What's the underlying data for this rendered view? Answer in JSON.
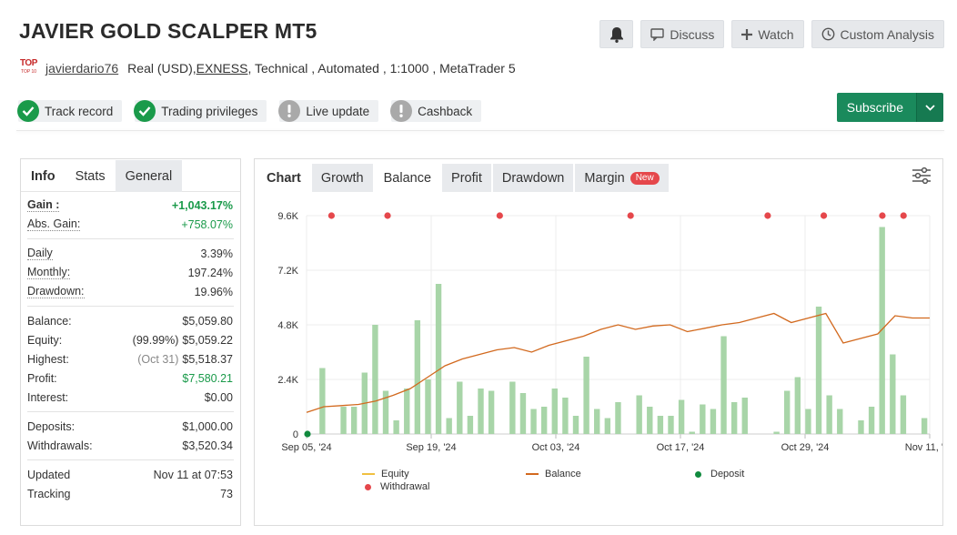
{
  "header": {
    "title": "JAVIER GOLD SCALPER MT5",
    "actions": {
      "discuss": "Discuss",
      "watch": "Watch",
      "custom_analysis": "Custom Analysis"
    }
  },
  "account": {
    "logo_top": "TOP",
    "logo_bottom": "TOP 10",
    "username": "javierdario76",
    "type_prefix": "Real (USD), ",
    "broker": "EXNESS",
    "details": " , Technical , Automated , 1:1000 , MetaTrader 5"
  },
  "badges": [
    {
      "label": "Track record",
      "status": "ok"
    },
    {
      "label": "Trading privileges",
      "status": "ok"
    },
    {
      "label": "Live update",
      "status": "warn"
    },
    {
      "label": "Cashback",
      "status": "warn"
    }
  ],
  "subscribe": {
    "label": "Subscribe"
  },
  "left_tabs": [
    "Info",
    "Stats",
    "General"
  ],
  "stats": {
    "gain": {
      "label": "Gain :",
      "value": "+1,043.17%"
    },
    "abs_gain": {
      "label": "Abs. Gain:",
      "value": "+758.07%"
    },
    "daily": {
      "label": "Daily",
      "value": "3.39%"
    },
    "monthly": {
      "label": "Monthly:",
      "value": "197.24%"
    },
    "drawdown": {
      "label": "Drawdown:",
      "value": "19.96%"
    },
    "balance": {
      "label": "Balance:",
      "value": "$5,059.80"
    },
    "equity": {
      "label": "Equity:",
      "note": "(99.99%)",
      "value": "$5,059.22"
    },
    "highest": {
      "label": "Highest:",
      "note": "(Oct 31)",
      "value": "$5,518.37"
    },
    "profit": {
      "label": "Profit:",
      "value": "$7,580.21"
    },
    "interest": {
      "label": "Interest:",
      "value": "$0.00"
    },
    "deposits": {
      "label": "Deposits:",
      "value": "$1,000.00"
    },
    "withdrawals": {
      "label": "Withdrawals:",
      "value": "$3,520.34"
    },
    "updated": {
      "label": "Updated",
      "value": "Nov 11 at 07:53"
    },
    "tracking": {
      "label": "Tracking",
      "value": "73"
    }
  },
  "chart_tabs": {
    "label": "Chart",
    "items": [
      "Growth",
      "Balance",
      "Profit",
      "Drawdown",
      "Margin"
    ],
    "active": "Balance",
    "new_badge": "New"
  },
  "colors": {
    "bar": "#a8d5a8",
    "balance_line": "#d2691e",
    "equity_line": "#f0c040",
    "deposit": "#118a3e",
    "withdrawal": "#e5474b"
  },
  "chart_data": {
    "type": "bar",
    "y_ticks": [
      "0",
      "2.4K",
      "4.8K",
      "7.2K",
      "9.6K"
    ],
    "ylim": [
      0,
      9600
    ],
    "x_ticks": [
      "Sep 05, '24",
      "Sep 19, '24",
      "Oct 03, '24",
      "Oct 17, '24",
      "Oct 29, '24",
      "Nov 11, '24"
    ],
    "bars": [
      0,
      2900,
      0,
      1200,
      1200,
      2700,
      4800,
      1900,
      600,
      2000,
      5000,
      2400,
      6600,
      700,
      2300,
      800,
      2000,
      1900,
      0,
      2300,
      1800,
      1100,
      1200,
      2000,
      1600,
      800,
      3400,
      1100,
      700,
      1400,
      0,
      1700,
      1200,
      800,
      800,
      1500,
      100,
      1300,
      1100,
      4300,
      1400,
      1600,
      0,
      0,
      100,
      1900,
      2500,
      1100,
      5600,
      1700,
      1100,
      0,
      600,
      1200,
      9100,
      3500,
      1700,
      0,
      700
    ],
    "balance_line": [
      950,
      1200,
      1250,
      1300,
      1450,
      1700,
      2000,
      2500,
      3000,
      3300,
      3500,
      3700,
      3800,
      3600,
      3900,
      4100,
      4300,
      4600,
      4800,
      4600,
      4750,
      4800,
      4500,
      4650,
      4800,
      4900,
      5100,
      5300,
      4900,
      5100,
      5300,
      4000,
      4200,
      4400,
      5200,
      5100,
      5100
    ],
    "series": [
      {
        "name": "Equity"
      },
      {
        "name": "Balance"
      },
      {
        "name": "Deposit"
      },
      {
        "name": "Withdrawal"
      }
    ]
  }
}
